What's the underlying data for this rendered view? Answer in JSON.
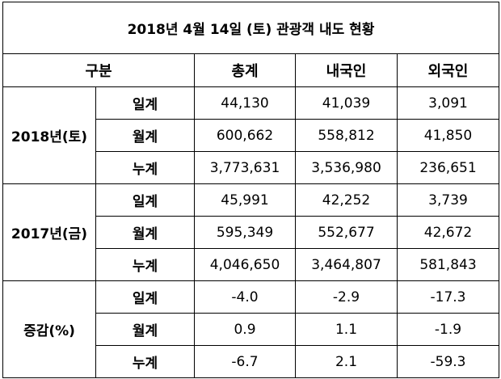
{
  "title": "2018년 4월 14일 (토) 관광객 내도 현황",
  "headers": {
    "category": "구분",
    "total": "총계",
    "domestic": "내국인",
    "foreign": "외국인"
  },
  "groups": [
    {
      "label": "2018년(토)",
      "rows": [
        {
          "metric": "일계",
          "total": "44,130",
          "domestic": "41,039",
          "foreign": "3,091"
        },
        {
          "metric": "월계",
          "total": "600,662",
          "domestic": "558,812",
          "foreign": "41,850"
        },
        {
          "metric": "누계",
          "total": "3,773,631",
          "domestic": "3,536,980",
          "foreign": "236,651"
        }
      ]
    },
    {
      "label": "2017년(금)",
      "rows": [
        {
          "metric": "일계",
          "total": "45,991",
          "domestic": "42,252",
          "foreign": "3,739"
        },
        {
          "metric": "월계",
          "total": "595,349",
          "domestic": "552,677",
          "foreign": "42,672"
        },
        {
          "metric": "누계",
          "total": "4,046,650",
          "domestic": "3,464,807",
          "foreign": "581,843"
        }
      ]
    },
    {
      "label": "증감(%)",
      "rows": [
        {
          "metric": "일계",
          "total": "-4.0",
          "domestic": "-2.9",
          "foreign": "-17.3"
        },
        {
          "metric": "월계",
          "total": "0.9",
          "domestic": "1.1",
          "foreign": "-1.9"
        },
        {
          "metric": "누계",
          "total": "-6.7",
          "domestic": "2.1",
          "foreign": "-59.3"
        }
      ]
    }
  ]
}
